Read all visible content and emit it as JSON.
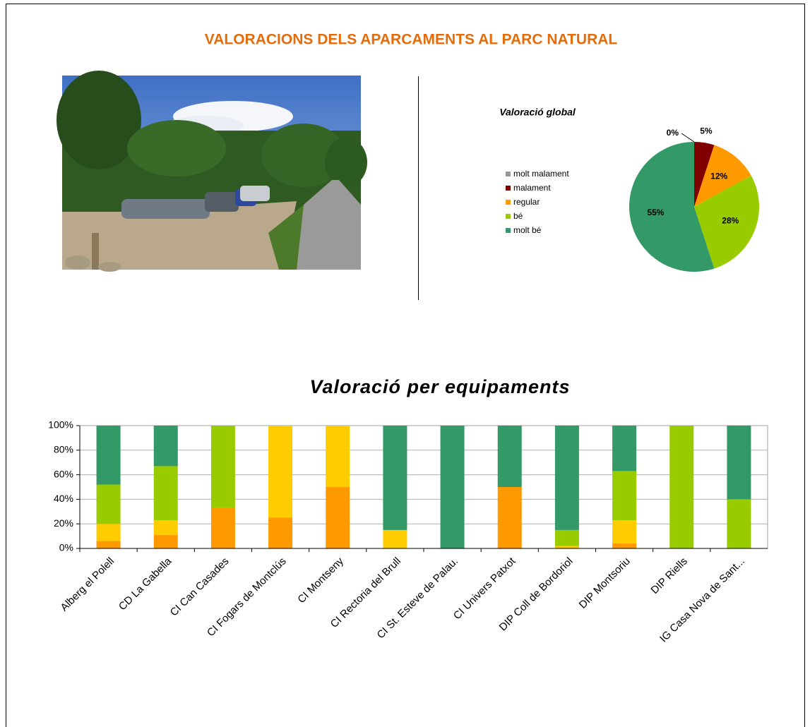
{
  "title": "VALORACIONS DELS APARCAMENTS AL PARC NATURAL",
  "chart_data": [
    {
      "type": "pie",
      "title": "Valoració global",
      "labels": [
        "molt malament",
        "malament",
        "regular",
        "bé",
        "molt bé"
      ],
      "values": [
        0,
        5,
        12,
        28,
        55
      ],
      "value_labels": [
        "0%",
        "5%",
        "12%",
        "28%",
        "55%"
      ],
      "colors": [
        "#969696",
        "#800000",
        "#ff9900",
        "#99cc00",
        "#339966"
      ]
    },
    {
      "type": "bar",
      "stacked": true,
      "title": "Valoració  per equipaments",
      "categories": [
        "Alberg el Polell",
        "CD La Gabella",
        "CI Can Casades",
        "CI Fogars de Montclús",
        "CI Montseny",
        "CI Rectoria del Brull",
        "CI St. Esteve de Palau.",
        "CI Univers Patxot",
        "DIP Coll de Bordoriol",
        "DIP Montsoriu",
        "DIP Riells",
        "IG Casa Nova de Sant..."
      ],
      "series": [
        {
          "color": "#ff9900",
          "values": [
            6,
            11,
            33,
            25,
            50,
            0,
            0,
            50,
            0,
            4,
            0,
            0
          ]
        },
        {
          "color": "#ffcc00",
          "values": [
            14,
            12,
            0,
            75,
            50,
            15,
            0,
            0,
            2,
            19,
            0,
            0
          ]
        },
        {
          "color": "#99cc00",
          "values": [
            32,
            44,
            67,
            0,
            0,
            0,
            0,
            0,
            13,
            40,
            100,
            40
          ]
        },
        {
          "color": "#339966",
          "values": [
            48,
            33,
            0,
            0,
            0,
            85,
            100,
            50,
            85,
            37,
            0,
            60
          ]
        }
      ],
      "ylim": [
        0,
        100
      ],
      "yticks": [
        {
          "value": 0,
          "label": "0%"
        },
        {
          "value": 20,
          "label": "20%"
        },
        {
          "value": 40,
          "label": "40%"
        },
        {
          "value": 60,
          "label": "60%"
        },
        {
          "value": 80,
          "label": "80%"
        },
        {
          "value": 100,
          "label": "100%"
        }
      ],
      "grid": true
    }
  ]
}
